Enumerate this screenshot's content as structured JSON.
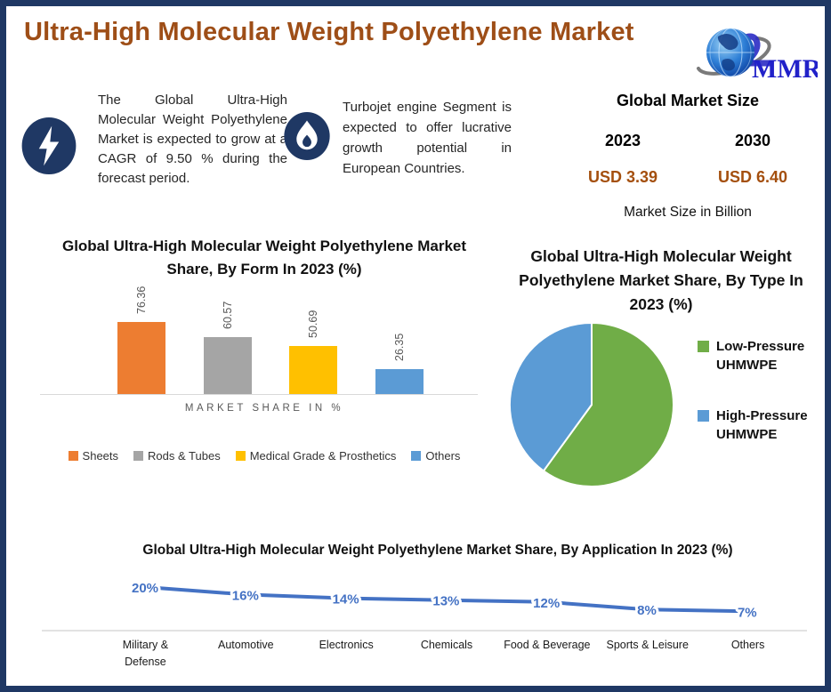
{
  "page": {
    "title": "Ultra-High Molecular Weight Polyethylene Market",
    "title_color": "#9E4E17",
    "border_color": "#1F3864"
  },
  "logo": {
    "text": "MMR"
  },
  "facts": {
    "cagr": {
      "icon": "lightning-icon",
      "text": "The Global Ultra-High Molecular Weight Polyethylene Market is expected to grow at a CAGR of 9.50 % during the forecast period."
    },
    "segment": {
      "icon": "flame-icon",
      "text": "Turbojet engine Segment is expected to offer lucrative growth potential in European Countries."
    }
  },
  "market_size": {
    "title": "Global Market Size",
    "columns": [
      {
        "year": "2023",
        "value": "USD 3.39"
      },
      {
        "year": "2030",
        "value": "USD 6.40"
      }
    ],
    "note": "Market Size in Billion",
    "value_color": "#A44F0E"
  },
  "chart_data": [
    {
      "type": "bar",
      "title": "Global Ultra-High Molecular Weight Polyethylene Market Share, By Form In 2023 (%)",
      "xlabel": "MARKET SHARE IN %",
      "categories": [
        "Sheets",
        "Rods & Tubes",
        "Medical Grade & Prosthetics",
        "Others"
      ],
      "values": [
        76.36,
        60.57,
        50.69,
        26.35
      ],
      "value_labels": [
        "76.36",
        "60.57",
        "50.69",
        "26.35"
      ],
      "colors": [
        "#ED7D31",
        "#A5A5A5",
        "#FFC000",
        "#5B9BD5"
      ],
      "ylim": [
        0,
        90
      ],
      "grid": false,
      "legend_position": "bottom"
    },
    {
      "type": "pie",
      "title": "Global Ultra-High Molecular Weight Polyethylene Market Share, By Type In 2023 (%)",
      "labels": [
        "Low-Pressure UHMWPE",
        "High-Pressure UHMWPE"
      ],
      "values": [
        60,
        40
      ],
      "colors": [
        "#70AD47",
        "#5B9BD5"
      ],
      "legend_position": "right"
    },
    {
      "type": "line",
      "title": "Global Ultra-High Molecular Weight Polyethylene Market  Share, By Application In 2023 (%)",
      "categories": [
        "Military & Defense",
        "Automotive",
        "Electronics",
        "Chemicals",
        "Food & Beverage",
        "Sports & Leisure",
        "Others"
      ],
      "values": [
        20,
        16,
        14,
        13,
        12,
        8,
        7
      ],
      "value_labels": [
        "20%",
        "16%",
        "14%",
        "13%",
        "12%",
        "8%",
        "7%"
      ],
      "color": "#4472C4",
      "ylim": [
        0,
        25
      ],
      "grid": false,
      "legend_position": "none"
    }
  ]
}
